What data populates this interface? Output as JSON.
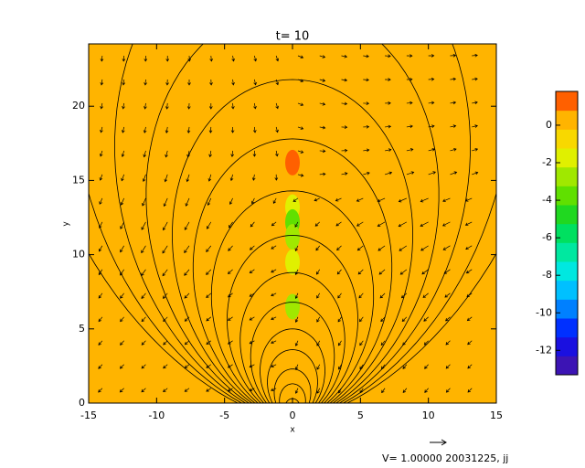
{
  "chart_data": {
    "type": "contour",
    "title": "t= 10",
    "x_label": "x",
    "y_label": "y",
    "xlim": [
      -15,
      15
    ],
    "ylim": [
      0,
      24.2
    ],
    "xticks": [
      -15,
      -10,
      -5,
      0,
      5,
      10,
      15
    ],
    "yticks": [
      0,
      5,
      10,
      15,
      20
    ],
    "background_value": 0,
    "colorbar": {
      "clim": [
        -13.3,
        1.8
      ],
      "ticks": [
        0,
        -2,
        -4,
        -6,
        -8,
        -10,
        -12
      ],
      "colors": [
        "#3c14b4",
        "#1a10e0",
        "#0030ff",
        "#0080ff",
        "#00c0ff",
        "#00e8e0",
        "#00e8a0",
        "#00e060",
        "#20d820",
        "#60e000",
        "#a0e800",
        "#e0f000",
        "#f8d800",
        "#ffb400",
        "#ff6000"
      ]
    },
    "cells": {
      "x": [
        0,
        0,
        0,
        0,
        0,
        0
      ],
      "y": [
        16.2,
        13.2,
        12.2,
        11.2,
        9.5,
        6.5
      ],
      "values": [
        1.2,
        -1.5,
        -4,
        -2.5,
        -1.5,
        -3
      ]
    },
    "footer": "V= 1.00000 20031225, jj"
  }
}
